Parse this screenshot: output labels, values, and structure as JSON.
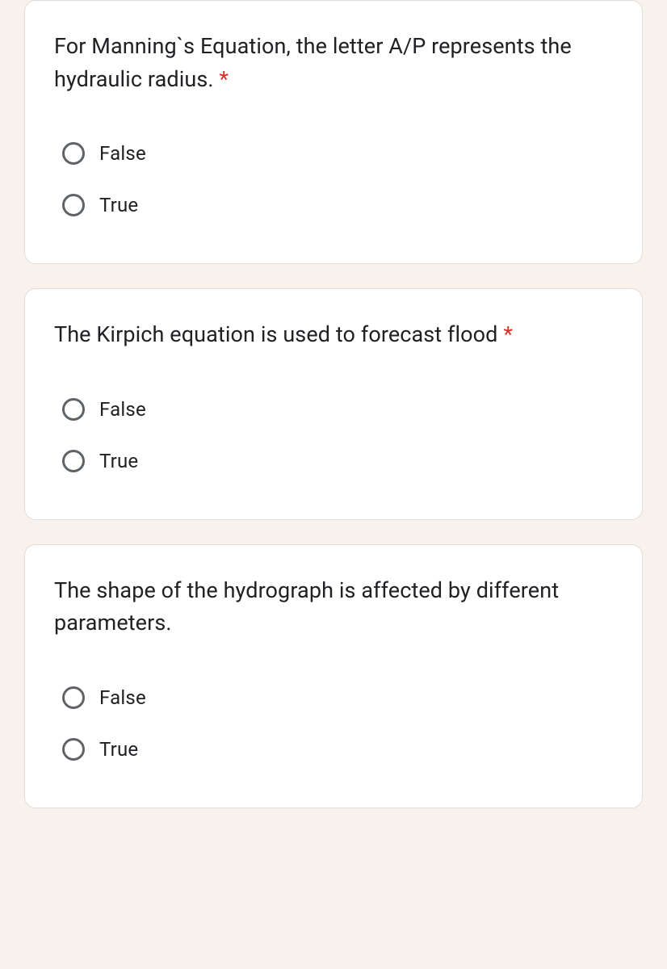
{
  "page": {
    "background_color": "#f9f2ec",
    "card_background": "#ffffff",
    "card_border_color": "#e2ddd8",
    "required_color": "#d93025",
    "text_color": "#202124",
    "radio_border_color": "#5f6368"
  },
  "questions": [
    {
      "text": "For Manning`s Equation, the letter A/P represents the hydraulic radius.",
      "required": true,
      "options": [
        "False",
        "True"
      ]
    },
    {
      "text": "The Kirpich equation is used to forecast flood",
      "required": true,
      "options": [
        "False",
        "True"
      ]
    },
    {
      "text": "The shape of the hydrograph is affected by different parameters.",
      "required": false,
      "options": [
        "False",
        "True"
      ]
    }
  ],
  "required_marker": " *"
}
